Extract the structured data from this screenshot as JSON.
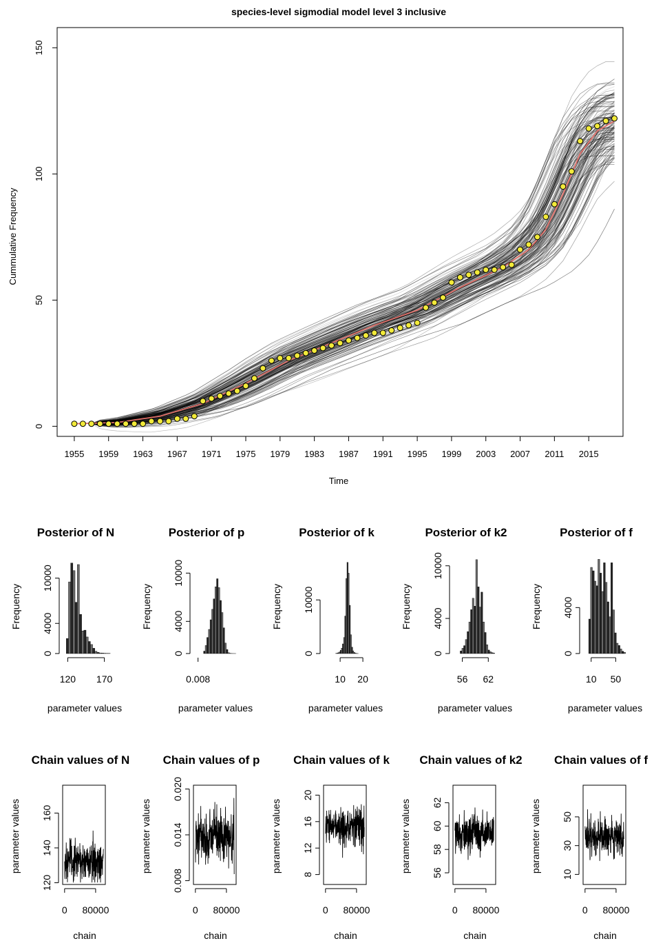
{
  "chart_data": [
    {
      "type": "line",
      "title": "species-level sigmodial model level 3 inclusive",
      "xlabel": "Time",
      "ylabel": "Cummulative Frequency",
      "xlim": [
        1953,
        2019
      ],
      "ylim": [
        -4,
        158
      ],
      "x_ticks": [
        "1955",
        "1959",
        "1963",
        "1967",
        "1971",
        "1975",
        "1979",
        "1983",
        "1987",
        "1991",
        "1995",
        "1999",
        "2003",
        "2007",
        "2011",
        "2015"
      ],
      "x_tick_values": [
        1955,
        1959,
        1963,
        1967,
        1971,
        1975,
        1979,
        1983,
        1987,
        1991,
        1995,
        1999,
        2003,
        2007,
        2011,
        2015
      ],
      "y_ticks": [
        "0",
        "50",
        "100",
        "150"
      ],
      "y_tick_values": [
        0,
        50,
        100,
        150
      ],
      "grid": false,
      "colors": {
        "posterior_draws": "#000000",
        "mean_curve": "#e0706a",
        "points_fill": "#f2ea3a",
        "points_edge": "#000000"
      },
      "series": [
        {
          "values_x": [
            1955,
            1956,
            1957,
            1958,
            1959,
            1960,
            1961,
            1962,
            1963,
            1964,
            1965,
            1966,
            1967,
            1968,
            1969,
            1970,
            1971,
            1972,
            1973,
            1974,
            1975,
            1976,
            1977,
            1978,
            1979,
            1980,
            1981,
            1982,
            1983,
            1984,
            1985,
            1986,
            1987,
            1988,
            1989,
            1990,
            1991,
            1992,
            1993,
            1994,
            1995,
            1996,
            1997,
            1998,
            1999,
            2000,
            2001,
            2002,
            2003,
            2004,
            2005,
            2006,
            2007,
            2008,
            2009,
            2010,
            2011,
            2012,
            2013,
            2014,
            2015,
            2016,
            2017,
            2018
          ],
          "values_y": [
            1,
            1,
            1,
            1,
            1,
            1,
            1,
            1,
            1,
            2,
            2,
            2,
            3,
            3,
            4,
            10,
            11,
            12,
            13,
            14,
            16,
            19,
            23,
            26,
            27,
            27,
            28,
            29,
            30,
            31,
            32,
            33,
            34,
            35,
            36,
            37,
            37,
            38,
            39,
            40,
            41,
            47,
            49,
            51,
            57,
            59,
            60,
            61,
            62,
            62,
            63,
            64,
            70,
            72,
            75,
            83,
            88,
            95,
            101,
            113,
            118,
            119,
            121,
            122
          ]
        },
        {
          "values_x": [
            1955,
            1960,
            1965,
            1970,
            1975,
            1980,
            1985,
            1990,
            1995,
            2000,
            2005,
            2008,
            2010,
            2012,
            2014,
            2016,
            2018
          ],
          "values_y": [
            1,
            1.5,
            4,
            9,
            17,
            26,
            33,
            40,
            46,
            55,
            63,
            70,
            78,
            92,
            108,
            117,
            121
          ]
        }
      ]
    },
    {
      "type": "histogram",
      "title": "Posterior of N",
      "xlabel": "parameter values",
      "ylabel": "Frequency",
      "x_ticks": [
        "120",
        "170"
      ],
      "x_tick_values": [
        120,
        170
      ],
      "xlim": [
        114,
        176
      ],
      "y_ticks": [
        "0",
        "4000",
        "10000"
      ],
      "y_tick_values": [
        0,
        4000,
        10000
      ],
      "ylim": [
        0,
        12800
      ],
      "bin_start": 118,
      "bin_width": 3,
      "values": [
        2000,
        9500,
        12000,
        11000,
        6800,
        11800,
        5200,
        3000,
        3100,
        2200,
        1600,
        1200,
        700,
        300,
        150,
        80,
        60,
        40,
        30,
        20
      ]
    },
    {
      "type": "histogram",
      "title": "Posterior of p",
      "xlabel": "parameter values",
      "ylabel": "Frequency",
      "x_ticks": [
        "0.008"
      ],
      "x_tick_values": [
        0.008
      ],
      "xlim": [
        0.0068,
        0.0208
      ],
      "y_ticks": [
        "0",
        "4000",
        "10000"
      ],
      "y_tick_values": [
        0,
        4000,
        10000
      ],
      "ylim": [
        0,
        12000
      ],
      "bin_start": 0.0097,
      "bin_width": 0.0005,
      "values": [
        300,
        1000,
        2000,
        3000,
        4200,
        5500,
        6800,
        8300,
        9300,
        8200,
        6600,
        5100,
        3200,
        1300,
        500,
        100,
        30,
        10,
        5,
        2
      ]
    },
    {
      "type": "histogram",
      "title": "Posterior of k",
      "xlabel": "parameter values",
      "ylabel": "Frequency",
      "x_ticks": [
        "10",
        "20"
      ],
      "x_tick_values": [
        10,
        20
      ],
      "xlim": [
        3,
        23
      ],
      "y_ticks": [
        "0",
        "10000"
      ],
      "y_tick_values": [
        0,
        10000
      ],
      "ylim": [
        0,
        18000
      ],
      "bin_start": 8,
      "bin_width": 0.5,
      "values": [
        40,
        80,
        150,
        300,
        600,
        1000,
        1800,
        3000,
        7000,
        14000,
        17000,
        15000,
        9000,
        3500,
        1200,
        500,
        200,
        80,
        20,
        10
      ]
    },
    {
      "type": "histogram",
      "title": "Posterior of k2",
      "xlabel": "parameter values",
      "ylabel": "Frequency",
      "x_ticks": [
        "56",
        "62"
      ],
      "x_tick_values": [
        56,
        62
      ],
      "xlim": [
        54,
        64.5
      ],
      "y_ticks": [
        "0",
        "4000",
        "10000"
      ],
      "y_tick_values": [
        0,
        4000,
        10000
      ],
      "ylim": [
        0,
        11000
      ],
      "bin_start": 55.5,
      "bin_width": 0.4,
      "values": [
        300,
        600,
        900,
        1600,
        2500,
        3600,
        5000,
        6300,
        5400,
        10700,
        7600,
        5300,
        7000,
        3600,
        2400,
        1000,
        400,
        200,
        100,
        50
      ]
    },
    {
      "type": "histogram",
      "title": "Posterior of f",
      "xlabel": "parameter values",
      "ylabel": "Frequency",
      "x_ticks": [
        "10",
        "50"
      ],
      "x_tick_values": [
        10,
        50
      ],
      "xlim": [
        -2,
        72
      ],
      "y_ticks": [
        "0",
        "4000"
      ],
      "y_tick_values": [
        0,
        4000
      ],
      "ylim": [
        0,
        8400
      ],
      "bin_start": 6,
      "bin_width": 3,
      "values": [
        3000,
        7500,
        7200,
        6300,
        5900,
        8200,
        7000,
        5400,
        7900,
        6200,
        4500,
        3200,
        7900,
        3800,
        1800,
        900,
        700,
        400,
        200,
        100
      ]
    },
    {
      "type": "line",
      "title": "Chain values of N",
      "xlabel": "chain",
      "ylabel": "parameter values",
      "x_ticks": [
        "0",
        "80000"
      ],
      "x_tick_values": [
        0,
        80000
      ],
      "xlim": [
        -5000,
        105000
      ],
      "y_ticks": [
        "120",
        "140",
        "160"
      ],
      "y_tick_values": [
        120,
        140,
        160
      ],
      "ylim": [
        119,
        176
      ],
      "center": 132,
      "spread": 11
    },
    {
      "type": "line",
      "title": "Chain values of p",
      "xlabel": "chain",
      "ylabel": "parameter values",
      "x_ticks": [
        "0",
        "80000"
      ],
      "x_tick_values": [
        0,
        80000
      ],
      "xlim": [
        -5000,
        105000
      ],
      "y_ticks": [
        "0.008",
        "0.014",
        "0.020"
      ],
      "y_tick_values": [
        0.008,
        0.014,
        0.02
      ],
      "ylim": [
        0.0075,
        0.0205
      ],
      "center": 0.0138,
      "spread": 0.003
    },
    {
      "type": "line",
      "title": "Chain values of k",
      "xlabel": "chain",
      "ylabel": "parameter values",
      "x_ticks": [
        "0",
        "80000"
      ],
      "x_tick_values": [
        0,
        80000
      ],
      "xlim": [
        -5000,
        105000
      ],
      "y_ticks": [
        "8",
        "12",
        "16",
        "20"
      ],
      "y_tick_values": [
        8,
        12,
        16,
        20
      ],
      "ylim": [
        6.5,
        21.5
      ],
      "center": 15.3,
      "spread": 2.6
    },
    {
      "type": "line",
      "title": "Chain values of k2",
      "xlabel": "chain",
      "ylabel": "parameter values",
      "x_ticks": [
        "0",
        "80000"
      ],
      "x_tick_values": [
        0,
        80000
      ],
      "xlim": [
        -5000,
        105000
      ],
      "y_ticks": [
        "56",
        "58",
        "60",
        "62"
      ],
      "y_tick_values": [
        56,
        58,
        60,
        62
      ],
      "ylim": [
        55,
        63.5
      ],
      "center": 59.3,
      "spread": 1.5
    },
    {
      "type": "line",
      "title": "Chain values of f",
      "xlabel": "chain",
      "ylabel": "parameter values",
      "x_ticks": [
        "0",
        "80000"
      ],
      "x_tick_values": [
        0,
        80000
      ],
      "xlim": [
        -5000,
        105000
      ],
      "y_ticks": [
        "10",
        "30",
        "50"
      ],
      "y_tick_values": [
        10,
        30,
        50
      ],
      "ylim": [
        3,
        72
      ],
      "center": 36,
      "spread": 13
    }
  ]
}
